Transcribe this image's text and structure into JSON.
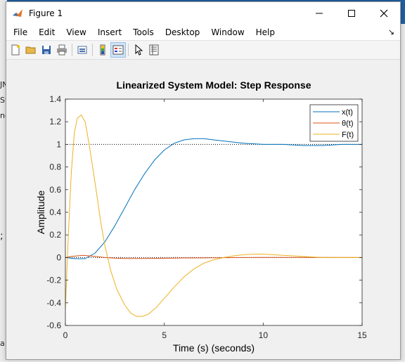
{
  "window": {
    "title": "Figure 1",
    "minimize": "—",
    "maximize": "☐",
    "close": "✕"
  },
  "menu": [
    "File",
    "Edit",
    "View",
    "Insert",
    "Tools",
    "Desktop",
    "Window",
    "Help"
  ],
  "toolbar_icons": [
    "new-figure-icon",
    "open-folder-icon",
    "save-icon",
    "print-icon",
    "link-plot-icon",
    "insert-colorbar-icon",
    "insert-legend-icon",
    "pointer-icon",
    "property-inspector-icon"
  ],
  "background_fragments": [
    "JN",
    "Sy",
    "ne",
    ";",
    "a"
  ],
  "chart_data": {
    "type": "line",
    "title": "Linearized System Model: Step Response",
    "xlabel": "Time (s) (seconds)",
    "ylabel": "Amplitude",
    "xlim": [
      0,
      15
    ],
    "ylim": [
      -0.6,
      1.4
    ],
    "xticks": [
      0,
      5,
      10,
      15
    ],
    "yticks": [
      -0.6,
      -0.4,
      -0.2,
      0,
      0.2,
      0.4,
      0.6,
      0.8,
      1,
      1.2,
      1.4
    ],
    "legend_location": "top-right",
    "reference_lines": [
      {
        "y": 1,
        "style": "dotted"
      },
      {
        "y": 0,
        "style": "dotted"
      }
    ],
    "series": [
      {
        "name": "x(t)",
        "color": "#0072bd",
        "x": [
          0,
          0.5,
          1,
          1.5,
          2,
          2.5,
          3,
          3.5,
          4,
          4.5,
          5,
          5.5,
          6,
          6.5,
          7,
          7.5,
          8,
          9,
          10,
          11,
          12,
          13,
          14,
          15
        ],
        "y": [
          0,
          -0.01,
          -0.01,
          0.04,
          0.14,
          0.28,
          0.44,
          0.6,
          0.74,
          0.86,
          0.95,
          1.01,
          1.04,
          1.05,
          1.05,
          1.04,
          1.03,
          1.01,
          1.0,
          1.0,
          0.99,
          0.99,
          1.0,
          1.0
        ]
      },
      {
        "name": "θ(t)",
        "color": "#d95319",
        "x": [
          0,
          0.3,
          0.6,
          0.9,
          1.2,
          1.5,
          2,
          2.5,
          3,
          4,
          5,
          6,
          7,
          8,
          9,
          10,
          12,
          15
        ],
        "y": [
          0,
          0.01,
          0.015,
          0.02,
          0.015,
          0.01,
          0.0,
          -0.005,
          -0.008,
          -0.008,
          -0.006,
          -0.004,
          -0.003,
          -0.001,
          0.0,
          0.001,
          0.001,
          0.0
        ]
      },
      {
        "name": "F(t)",
        "color": "#edb120",
        "x": [
          0,
          0.15,
          0.3,
          0.45,
          0.6,
          0.8,
          1,
          1.2,
          1.5,
          1.8,
          2,
          2.3,
          2.6,
          3,
          3.3,
          3.6,
          3.9,
          4.2,
          4.6,
          5,
          5.5,
          6,
          6.5,
          7,
          7.5,
          8,
          8.5,
          9,
          9.5,
          10,
          10.5,
          11,
          12,
          13,
          14,
          15
        ],
        "y": [
          -0.45,
          0.2,
          0.75,
          1.1,
          1.23,
          1.26,
          1.2,
          1.0,
          0.66,
          0.3,
          0.1,
          -0.12,
          -0.28,
          -0.42,
          -0.49,
          -0.52,
          -0.52,
          -0.5,
          -0.44,
          -0.36,
          -0.26,
          -0.17,
          -0.1,
          -0.05,
          -0.02,
          0.0,
          0.015,
          0.025,
          0.03,
          0.03,
          0.025,
          0.02,
          0.01,
          0.0,
          0.0,
          0.0
        ]
      }
    ]
  }
}
